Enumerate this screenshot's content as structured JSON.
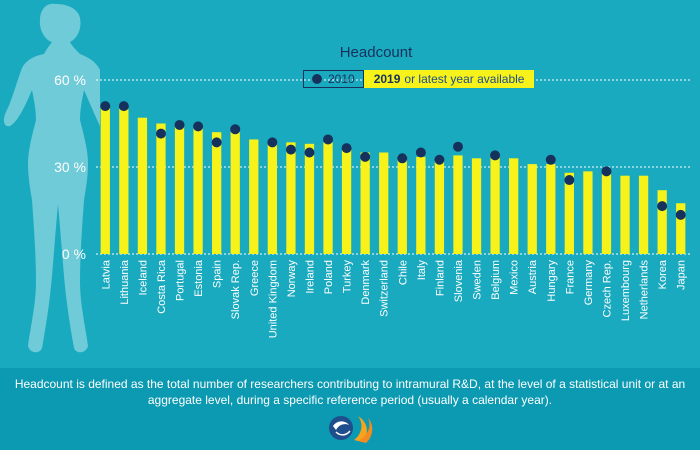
{
  "footnote": "Headcount is defined as the total number of researchers contributing to intramural R&D, at the level of a statistical unit or at an aggregate level, during a specific reference period (usually a calendar year).",
  "colors": {
    "background": "#1aaabf",
    "footer_background": "#0b9ab1",
    "bar": "#f6f21a",
    "marker": "#16325c",
    "grid": "#ffffff",
    "silhouette": "#6fcbd8"
  },
  "icons": {
    "silhouette": "female-silhouette-icon",
    "logo": "oecd-logo-icon"
  },
  "chart_data": {
    "type": "bar",
    "title": "Headcount",
    "legend": {
      "series_2010": "2010",
      "series_2019_bold": "2019",
      "series_2019_rest": "or latest year available",
      "placement": "top"
    },
    "ylim": [
      0,
      60
    ],
    "yticks": [
      "0 %",
      "30 %",
      "60 %"
    ],
    "grid": true,
    "categories": [
      "Latvia",
      "Lithuania",
      "Iceland",
      "Costa Rica",
      "Portugal",
      "Estonia",
      "Spain",
      "Slovak Rep.",
      "Greece",
      "United Kingdom",
      "Norway",
      "Ireland",
      "Poland",
      "Turkey",
      "Denmark",
      "Switzerland",
      "Chile",
      "Italy",
      "Finland",
      "Slovenia",
      "Sweden",
      "Belgium",
      "Mexico",
      "Austria",
      "Hungary",
      "France",
      "Germany",
      "Czech Rep.",
      "Luxembourg",
      "Netherlands",
      "Korea",
      "Japan"
    ],
    "series": [
      {
        "name": "2019",
        "kind": "bar",
        "values": [
          50.5,
          50,
          47,
          45,
          44.5,
          44,
          42,
          42,
          39.5,
          38,
          38.5,
          38,
          38.5,
          36,
          35,
          35,
          34,
          33.5,
          33,
          34,
          33,
          33.5,
          33,
          31,
          31,
          28,
          28.5,
          27.5,
          27,
          27,
          22,
          17.5
        ]
      },
      {
        "name": "2010",
        "kind": "marker",
        "values": [
          51,
          51,
          null,
          41.5,
          44.5,
          44,
          38.5,
          43,
          null,
          38.5,
          36,
          35,
          39.5,
          36.5,
          33.5,
          null,
          33,
          35,
          32.5,
          37,
          null,
          34,
          null,
          null,
          32.5,
          25.5,
          null,
          28.5,
          null,
          null,
          16.5,
          13.5
        ]
      }
    ]
  }
}
